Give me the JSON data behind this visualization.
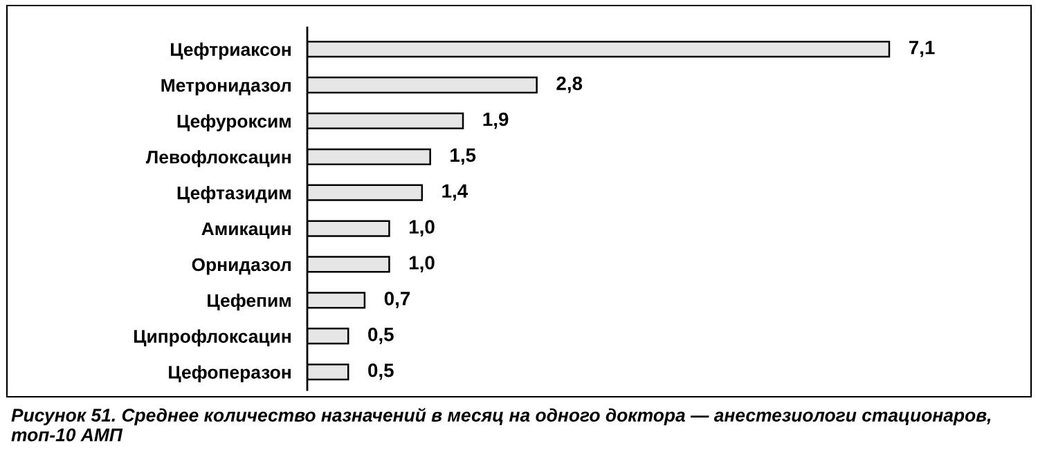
{
  "chart_data": {
    "type": "bar",
    "orientation": "horizontal",
    "color": "#e6e6e6",
    "categories": [
      "Цефтриаксон",
      "Метронидазол",
      "Цефуроксим",
      "Левофлоксацин",
      "Цефтазидим",
      "Амикацин",
      "Орнидазол",
      "Цефепим",
      "Ципрофлоксацин",
      "Цефоперазон"
    ],
    "values": [
      7.1,
      2.8,
      1.9,
      1.5,
      1.4,
      1.0,
      1.0,
      0.7,
      0.5,
      0.5
    ],
    "value_labels": [
      "7,1",
      "2,8",
      "1,9",
      "1,5",
      "1,4",
      "1,0",
      "1,0",
      "0,7",
      "0,5",
      "0,5"
    ],
    "grid": false,
    "legend": false,
    "annotations": [
      "Рисунок 51. Среднее количество назначений в месяц на одного доктора — анестезиологи стационаров, топ-10 АМП"
    ]
  }
}
